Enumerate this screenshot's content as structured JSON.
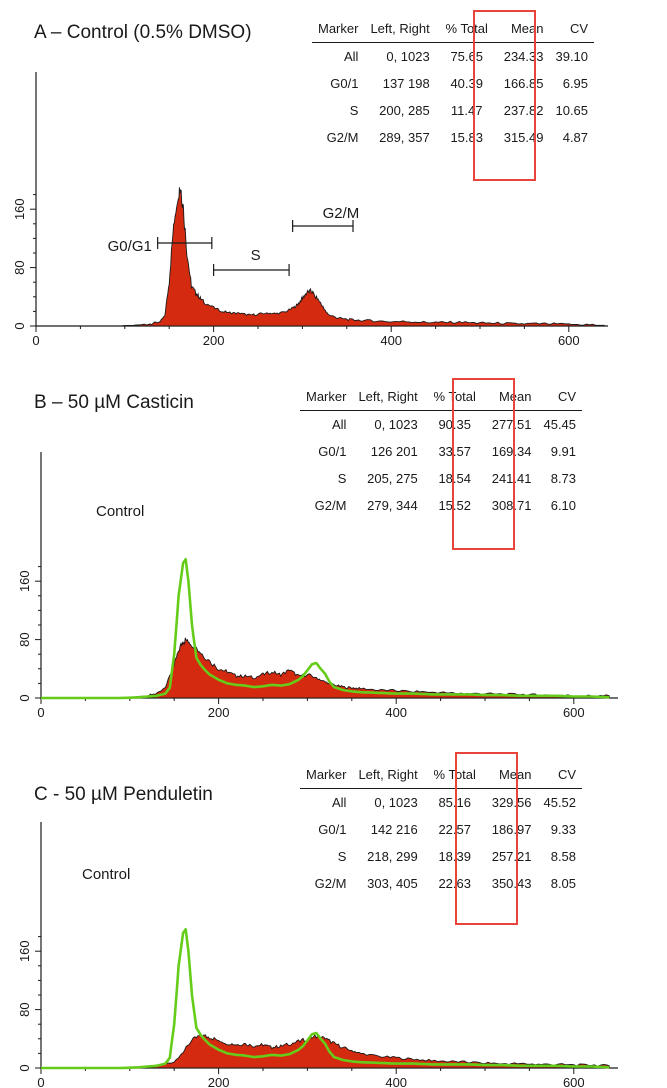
{
  "colors": {
    "histogram_fill": "#d42a10",
    "control_overlay": "#66cc1a",
    "highlight_box": "#e8443a"
  },
  "table_headers": [
    "Marker",
    "Left, Right",
    "% Total",
    "Mean",
    "CV"
  ],
  "panels": [
    {
      "title": "A – Control (0.5% DMSO)",
      "rows": [
        [
          "All",
          "0, 1023",
          "75.65",
          "234.33",
          "39.10"
        ],
        [
          "G0/1",
          "137   198",
          "40.39",
          "166.85",
          "6.95"
        ],
        [
          "S",
          "200,   285",
          "11.47",
          "237.82",
          "10.65"
        ],
        [
          "G2/M",
          "289,   357",
          "15.83",
          "315.49",
          "4.87"
        ]
      ],
      "overlay_label": "",
      "gates": [
        {
          "label": "G0/G1",
          "left": 137,
          "right": 198
        },
        {
          "label": "S",
          "left": 200,
          "right": 285
        },
        {
          "label": "G2/M",
          "left": 289,
          "right": 357
        }
      ]
    },
    {
      "title": "B – 50 µM Casticin",
      "rows": [
        [
          "All",
          "0, 1023",
          "90.35",
          "277.51",
          "45.45"
        ],
        [
          "G0/1",
          "126   201",
          "33.57",
          "169.34",
          "9.91"
        ],
        [
          "S",
          "205,   275",
          "18.54",
          "241.41",
          "8.73"
        ],
        [
          "G2/M",
          "279,   344",
          "15.52",
          "308.71",
          "6.10"
        ]
      ],
      "overlay_label": "Control",
      "gates": []
    },
    {
      "title": "C - 50 µM Penduletin",
      "rows": [
        [
          "All",
          "0, 1023",
          "85.16",
          "329.56",
          "45.52"
        ],
        [
          "G0/1",
          "142   216",
          "22.57",
          "186.97",
          "9.33"
        ],
        [
          "S",
          "218,   299",
          "18.39",
          "257.21",
          "8.58"
        ],
        [
          "G2/M",
          "303,   405",
          "22.63",
          "350.43",
          "8.05"
        ]
      ],
      "overlay_label": "Control",
      "gates": []
    }
  ],
  "chart_data": [
    {
      "type": "area",
      "title": "A – Control (0.5% DMSO)",
      "xlabel": "",
      "ylabel": "",
      "xlim": [
        0,
        640
      ],
      "ylim": [
        0,
        200
      ],
      "x_ticks": [
        0,
        200,
        400,
        600
      ],
      "y_ticks": [
        0,
        80,
        160
      ],
      "grid": false,
      "series": [
        {
          "x": [
            0,
            90,
            110,
            120,
            130,
            140,
            145,
            150,
            155,
            160,
            163,
            166,
            170,
            175,
            180,
            185,
            190,
            200,
            210,
            220,
            230,
            240,
            250,
            260,
            270,
            280,
            290,
            295,
            300,
            305,
            310,
            315,
            320,
            325,
            330,
            340,
            350,
            360,
            380,
            400,
            420,
            440,
            460,
            480,
            500,
            520,
            540,
            560,
            580,
            600,
            620,
            640
          ],
          "y": [
            0,
            0,
            1,
            2,
            3,
            6,
            14,
            60,
            140,
            185,
            190,
            160,
            100,
            55,
            45,
            38,
            32,
            25,
            20,
            18,
            17,
            15,
            16,
            18,
            17,
            19,
            25,
            30,
            38,
            46,
            48,
            40,
            33,
            22,
            15,
            11,
            9,
            8,
            7,
            6,
            6,
            5,
            5,
            5,
            4,
            4,
            3,
            3,
            3,
            2,
            2,
            1
          ]
        }
      ]
    },
    {
      "type": "area",
      "title": "B – 50 µM Casticin",
      "xlabel": "",
      "ylabel": "",
      "xlim": [
        0,
        640
      ],
      "ylim": [
        0,
        200
      ],
      "x_ticks": [
        0,
        200,
        400,
        600
      ],
      "y_ticks": [
        0,
        80,
        160
      ],
      "grid": false,
      "series": [
        {
          "name": "Control",
          "x": [
            0,
            90,
            110,
            120,
            130,
            140,
            145,
            150,
            155,
            160,
            163,
            166,
            170,
            175,
            180,
            185,
            190,
            200,
            210,
            220,
            230,
            240,
            250,
            260,
            270,
            280,
            290,
            295,
            300,
            305,
            310,
            315,
            320,
            325,
            330,
            340,
            350,
            360,
            380,
            400,
            420,
            440,
            460,
            480,
            500,
            520,
            540,
            560,
            580,
            600,
            620,
            640
          ],
          "y": [
            0,
            0,
            1,
            2,
            3,
            6,
            14,
            60,
            140,
            185,
            190,
            160,
            100,
            55,
            45,
            38,
            32,
            25,
            20,
            18,
            17,
            15,
            16,
            18,
            17,
            19,
            25,
            30,
            38,
            46,
            48,
            40,
            33,
            22,
            15,
            11,
            9,
            8,
            7,
            6,
            6,
            5,
            5,
            5,
            4,
            4,
            3,
            3,
            3,
            2,
            2,
            1
          ]
        },
        {
          "x": [
            0,
            100,
            120,
            130,
            140,
            150,
            155,
            160,
            165,
            170,
            180,
            190,
            200,
            210,
            220,
            230,
            240,
            250,
            260,
            270,
            280,
            290,
            300,
            310,
            320,
            330,
            340,
            350,
            360,
            380,
            400,
            420,
            440,
            460,
            480,
            500,
            520,
            540,
            560,
            580,
            600,
            620,
            640
          ],
          "y": [
            0,
            1,
            3,
            6,
            15,
            45,
            65,
            78,
            80,
            75,
            62,
            50,
            40,
            36,
            30,
            30,
            28,
            32,
            36,
            32,
            38,
            30,
            32,
            28,
            22,
            18,
            15,
            14,
            13,
            11,
            10,
            9,
            8,
            7,
            6,
            6,
            5,
            5,
            4,
            4,
            3,
            3,
            3
          ]
        }
      ]
    },
    {
      "type": "area",
      "title": "C - 50 µM Penduletin",
      "xlabel": "",
      "ylabel": "",
      "xlim": [
        0,
        640
      ],
      "ylim": [
        0,
        200
      ],
      "x_ticks": [
        0,
        200,
        400,
        600
      ],
      "y_ticks": [
        0,
        80,
        160
      ],
      "grid": false,
      "series": [
        {
          "name": "Control",
          "x": [
            0,
            90,
            110,
            120,
            130,
            140,
            145,
            150,
            155,
            160,
            163,
            166,
            170,
            175,
            180,
            185,
            190,
            200,
            210,
            220,
            230,
            240,
            250,
            260,
            270,
            280,
            290,
            295,
            300,
            305,
            310,
            315,
            320,
            325,
            330,
            340,
            350,
            360,
            380,
            400,
            420,
            440,
            460,
            480,
            500,
            520,
            540,
            560,
            580,
            600,
            620,
            640
          ],
          "y": [
            0,
            0,
            1,
            2,
            3,
            6,
            14,
            60,
            140,
            185,
            190,
            160,
            100,
            55,
            45,
            38,
            32,
            25,
            20,
            18,
            17,
            15,
            16,
            18,
            17,
            19,
            25,
            30,
            38,
            46,
            48,
            40,
            33,
            22,
            15,
            11,
            9,
            8,
            7,
            6,
            6,
            5,
            5,
            5,
            4,
            4,
            3,
            3,
            3,
            2,
            2,
            1
          ]
        },
        {
          "x": [
            0,
            110,
            130,
            150,
            160,
            170,
            180,
            190,
            200,
            210,
            220,
            230,
            240,
            250,
            260,
            270,
            280,
            290,
            300,
            310,
            320,
            330,
            340,
            350,
            360,
            380,
            400,
            420,
            440,
            460,
            480,
            500,
            520,
            540,
            560,
            580,
            600,
            620,
            640
          ],
          "y": [
            0,
            1,
            3,
            8,
            22,
            38,
            45,
            42,
            38,
            34,
            32,
            33,
            30,
            32,
            28,
            30,
            33,
            36,
            40,
            44,
            40,
            34,
            28,
            24,
            20,
            16,
            14,
            12,
            10,
            9,
            8,
            7,
            6,
            6,
            5,
            5,
            4,
            4,
            3
          ]
        }
      ]
    }
  ]
}
